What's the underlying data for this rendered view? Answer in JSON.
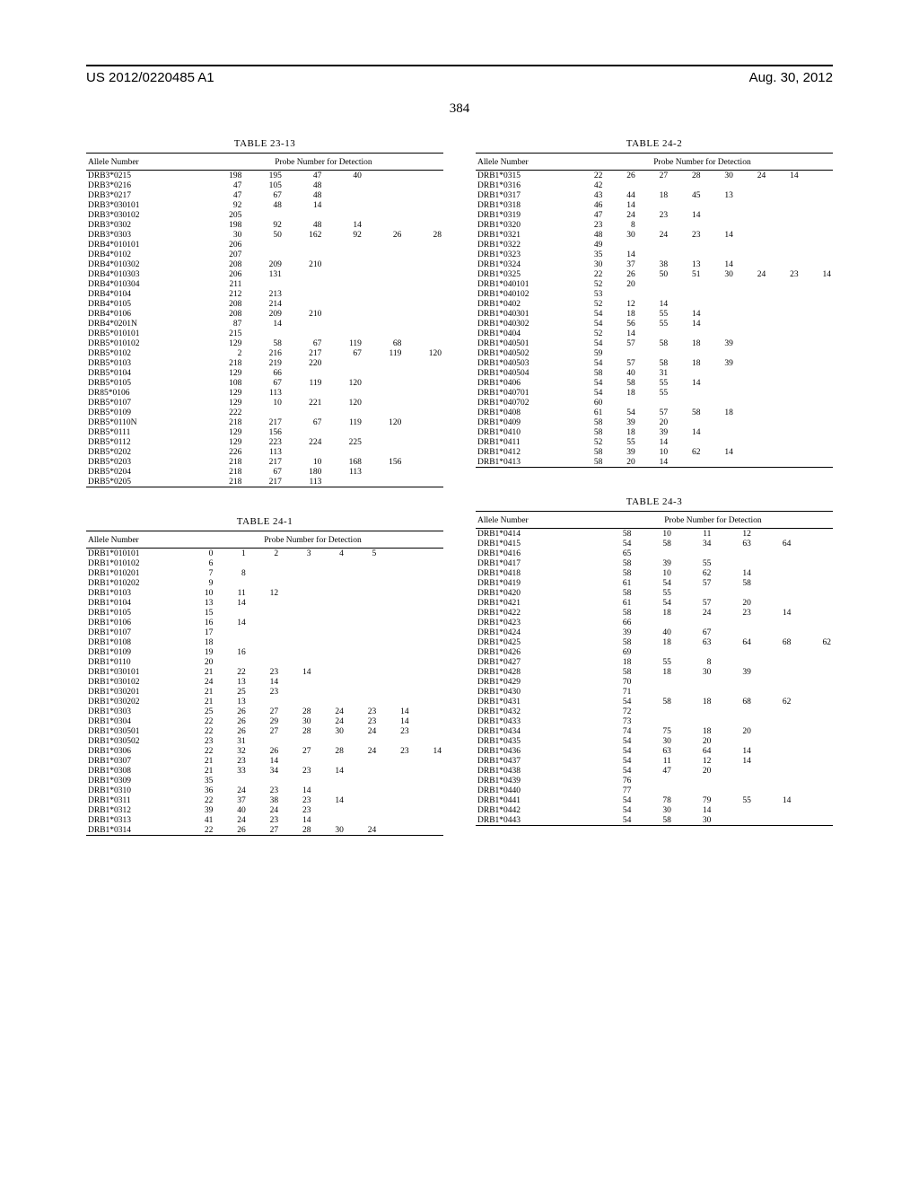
{
  "header": {
    "left": "US 2012/0220485 A1",
    "right": "Aug. 30, 2012",
    "page_number": "384"
  },
  "tables": {
    "t23_13": {
      "title": "TABLE 23-13",
      "heads": {
        "allele": "Allele Number",
        "probe": "Probe Number for Detection"
      },
      "num_cols": 6,
      "rows": [
        [
          "DRB3*0215",
          "198",
          "195",
          "47",
          "40",
          "",
          ""
        ],
        [
          "DRB3*0216",
          "47",
          "105",
          "48",
          "",
          "",
          ""
        ],
        [
          "DRB3*0217",
          "47",
          "67",
          "48",
          "",
          "",
          ""
        ],
        [
          "DRB3*030101",
          "92",
          "48",
          "14",
          "",
          "",
          ""
        ],
        [
          "DRB3*030102",
          "205",
          "",
          "",
          "",
          "",
          ""
        ],
        [
          "DRB3*0302",
          "198",
          "92",
          "48",
          "14",
          "",
          ""
        ],
        [
          "DRB3*0303",
          "30",
          "50",
          "162",
          "92",
          "26",
          "28"
        ],
        [
          "DRB4*010101",
          "206",
          "",
          "",
          "",
          "",
          ""
        ],
        [
          "DRB4*0102",
          "207",
          "",
          "",
          "",
          "",
          ""
        ],
        [
          "DRB4*010302",
          "208",
          "209",
          "210",
          "",
          "",
          ""
        ],
        [
          "DRB4*010303",
          "206",
          "131",
          "",
          "",
          "",
          ""
        ],
        [
          "DRB4*010304",
          "211",
          "",
          "",
          "",
          "",
          ""
        ],
        [
          "DRB4*0104",
          "212",
          "213",
          "",
          "",
          "",
          ""
        ],
        [
          "DRB4*0105",
          "208",
          "214",
          "",
          "",
          "",
          ""
        ],
        [
          "DRB4*0106",
          "208",
          "209",
          "210",
          "",
          "",
          ""
        ],
        [
          "DRB4*0201N",
          "87",
          "14",
          "",
          "",
          "",
          ""
        ],
        [
          "DRB5*010101",
          "215",
          "",
          "",
          "",
          "",
          ""
        ],
        [
          "DRB5*010102",
          "129",
          "58",
          "67",
          "119",
          "68",
          ""
        ],
        [
          "DRB5*0102",
          "2",
          "216",
          "217",
          "67",
          "119",
          "120"
        ],
        [
          "DRB5*0103",
          "218",
          "219",
          "220",
          "",
          "",
          ""
        ],
        [
          "DRB5*0104",
          "129",
          "66",
          "",
          "",
          "",
          ""
        ],
        [
          "DRB5*0105",
          "108",
          "67",
          "119",
          "120",
          "",
          ""
        ],
        [
          "DR85*0106",
          "129",
          "113",
          "",
          "",
          "",
          ""
        ],
        [
          "DRB5*0107",
          "129",
          "10",
          "221",
          "120",
          "",
          ""
        ],
        [
          "DRB5*0109",
          "222",
          "",
          "",
          "",
          "",
          ""
        ],
        [
          "DRB5*0110N",
          "218",
          "217",
          "67",
          "119",
          "120",
          ""
        ],
        [
          "DRB5*0111",
          "129",
          "156",
          "",
          "",
          "",
          ""
        ],
        [
          "DRB5*0112",
          "129",
          "223",
          "224",
          "225",
          "",
          ""
        ],
        [
          "DRB5*0202",
          "226",
          "113",
          "",
          "",
          "",
          ""
        ],
        [
          "DRB5*0203",
          "218",
          "217",
          "10",
          "168",
          "156",
          ""
        ],
        [
          "DRB5*0204",
          "218",
          "67",
          "180",
          "113",
          "",
          ""
        ],
        [
          "DRB5*0205",
          "218",
          "217",
          "113",
          "",
          "",
          ""
        ]
      ]
    },
    "t24_1": {
      "title": "TABLE 24-1",
      "heads": {
        "allele": "Allele Number",
        "probe": "Probe Number for Detection"
      },
      "num_cols": 8,
      "rows": [
        [
          "DRB1*010101",
          "0",
          "1",
          "2",
          "3",
          "4",
          "5",
          "",
          ""
        ],
        [
          "DRB1*010102",
          "6",
          "",
          "",
          "",
          "",
          "",
          "",
          ""
        ],
        [
          "DRB1*010201",
          "7",
          "8",
          "",
          "",
          "",
          "",
          "",
          ""
        ],
        [
          "DRB1*010202",
          "9",
          "",
          "",
          "",
          "",
          "",
          "",
          ""
        ],
        [
          "DRB1*0103",
          "10",
          "11",
          "12",
          "",
          "",
          "",
          "",
          ""
        ],
        [
          "DRB1*0104",
          "13",
          "14",
          "",
          "",
          "",
          "",
          "",
          ""
        ],
        [
          "DRB1*0105",
          "15",
          "",
          "",
          "",
          "",
          "",
          "",
          ""
        ],
        [
          "DRB1*0106",
          "16",
          "14",
          "",
          "",
          "",
          "",
          "",
          ""
        ],
        [
          "DRB1*0107",
          "17",
          "",
          "",
          "",
          "",
          "",
          "",
          ""
        ],
        [
          "DRB1*0108",
          "18",
          "",
          "",
          "",
          "",
          "",
          "",
          ""
        ],
        [
          "DRB1*0109",
          "19",
          "16",
          "",
          "",
          "",
          "",
          "",
          ""
        ],
        [
          "DRB1*0110",
          "20",
          "",
          "",
          "",
          "",
          "",
          "",
          ""
        ],
        [
          "DRB1*030101",
          "21",
          "22",
          "23",
          "14",
          "",
          "",
          "",
          ""
        ],
        [
          "DRB1*030102",
          "24",
          "13",
          "14",
          "",
          "",
          "",
          "",
          ""
        ],
        [
          "DRB1*030201",
          "21",
          "25",
          "23",
          "",
          "",
          "",
          "",
          ""
        ],
        [
          "DRB1*030202",
          "21",
          "13",
          "",
          "",
          "",
          "",
          "",
          ""
        ],
        [
          "DRB1*0303",
          "25",
          "26",
          "27",
          "28",
          "24",
          "23",
          "14",
          ""
        ],
        [
          "DRB1*0304",
          "22",
          "26",
          "29",
          "30",
          "24",
          "23",
          "14",
          ""
        ],
        [
          "DRB1*030501",
          "22",
          "26",
          "27",
          "28",
          "30",
          "24",
          "23",
          ""
        ],
        [
          "DRB1*030502",
          "23",
          "31",
          "",
          "",
          "",
          "",
          "",
          ""
        ],
        [
          "DRB1*0306",
          "22",
          "32",
          "26",
          "27",
          "28",
          "24",
          "23",
          "14"
        ],
        [
          "DRB1*0307",
          "21",
          "23",
          "14",
          "",
          "",
          "",
          "",
          ""
        ],
        [
          "DRB1*0308",
          "21",
          "33",
          "34",
          "23",
          "14",
          "",
          "",
          ""
        ],
        [
          "DRB1*0309",
          "35",
          "",
          "",
          "",
          "",
          "",
          "",
          ""
        ],
        [
          "DRB1*0310",
          "36",
          "24",
          "23",
          "14",
          "",
          "",
          "",
          ""
        ],
        [
          "DRB1*0311",
          "22",
          "37",
          "38",
          "23",
          "14",
          "",
          "",
          ""
        ],
        [
          "DRB1*0312",
          "39",
          "40",
          "24",
          "23",
          "",
          "",
          "",
          ""
        ],
        [
          "DRB1*0313",
          "41",
          "24",
          "23",
          "14",
          "",
          "",
          "",
          ""
        ],
        [
          "DRB1*0314",
          "22",
          "26",
          "27",
          "28",
          "30",
          "24",
          "",
          ""
        ]
      ]
    },
    "t24_2": {
      "title": "TABLE 24-2",
      "heads": {
        "allele": "Allele Number",
        "probe": "Probe Number for Detection"
      },
      "num_cols": 8,
      "rows": [
        [
          "DRB1*0315",
          "22",
          "26",
          "27",
          "28",
          "30",
          "24",
          "14",
          ""
        ],
        [
          "DRB1*0316",
          "42",
          "",
          "",
          "",
          "",
          "",
          "",
          ""
        ],
        [
          "DRB1*0317",
          "43",
          "44",
          "18",
          "45",
          "13",
          "",
          "",
          ""
        ],
        [
          "DRB1*0318",
          "46",
          "14",
          "",
          "",
          "",
          "",
          "",
          ""
        ],
        [
          "DRB1*0319",
          "47",
          "24",
          "23",
          "14",
          "",
          "",
          "",
          ""
        ],
        [
          "DRB1*0320",
          "23",
          "8",
          "",
          "",
          "",
          "",
          "",
          ""
        ],
        [
          "DRB1*0321",
          "48",
          "30",
          "24",
          "23",
          "14",
          "",
          "",
          ""
        ],
        [
          "DRB1*0322",
          "49",
          "",
          "",
          "",
          "",
          "",
          "",
          ""
        ],
        [
          "DRB1*0323",
          "35",
          "14",
          "",
          "",
          "",
          "",
          "",
          ""
        ],
        [
          "DRB1*0324",
          "30",
          "37",
          "38",
          "13",
          "14",
          "",
          "",
          ""
        ],
        [
          "DRB1*0325",
          "22",
          "26",
          "50",
          "51",
          "30",
          "24",
          "23",
          "14"
        ],
        [
          "DRB1*040101",
          "52",
          "20",
          "",
          "",
          "",
          "",
          "",
          ""
        ],
        [
          "DRB1*040102",
          "53",
          "",
          "",
          "",
          "",
          "",
          "",
          ""
        ],
        [
          "DRB1*0402",
          "52",
          "12",
          "14",
          "",
          "",
          "",
          "",
          ""
        ],
        [
          "DRB1*040301",
          "54",
          "18",
          "55",
          "14",
          "",
          "",
          "",
          ""
        ],
        [
          "DRB1*040302",
          "54",
          "56",
          "55",
          "14",
          "",
          "",
          "",
          ""
        ],
        [
          "DRB1*0404",
          "52",
          "14",
          "",
          "",
          "",
          "",
          "",
          ""
        ],
        [
          "DRB1*040501",
          "54",
          "57",
          "58",
          "18",
          "39",
          "",
          "",
          ""
        ],
        [
          "DRB1*040502",
          "59",
          "",
          "",
          "",
          "",
          "",
          "",
          ""
        ],
        [
          "DRB1*040503",
          "54",
          "57",
          "58",
          "18",
          "39",
          "",
          "",
          ""
        ],
        [
          "DRB1*040504",
          "58",
          "40",
          "31",
          "",
          "",
          "",
          "",
          ""
        ],
        [
          "DRB1*0406",
          "54",
          "58",
          "55",
          "14",
          "",
          "",
          "",
          ""
        ],
        [
          "DRB1*040701",
          "54",
          "18",
          "55",
          "",
          "",
          "",
          "",
          ""
        ],
        [
          "DRB1*040702",
          "60",
          "",
          "",
          "",
          "",
          "",
          "",
          ""
        ],
        [
          "DRB1*0408",
          "61",
          "54",
          "57",
          "58",
          "18",
          "",
          "",
          ""
        ],
        [
          "DRB1*0409",
          "58",
          "39",
          "20",
          "",
          "",
          "",
          "",
          ""
        ],
        [
          "DRB1*0410",
          "58",
          "18",
          "39",
          "14",
          "",
          "",
          "",
          ""
        ],
        [
          "DRB1*0411",
          "52",
          "55",
          "14",
          "",
          "",
          "",
          "",
          ""
        ],
        [
          "DRB1*0412",
          "58",
          "39",
          "10",
          "62",
          "14",
          "",
          "",
          ""
        ],
        [
          "DRB1*0413",
          "58",
          "20",
          "14",
          "",
          "",
          "",
          "",
          ""
        ]
      ]
    },
    "t24_3": {
      "title": "TABLE 24-3",
      "heads": {
        "allele": "Allele Number",
        "probe": "Probe Number for Detection"
      },
      "num_cols": 6,
      "rows": [
        [
          "DRB1*0414",
          "58",
          "10",
          "11",
          "12",
          "",
          ""
        ],
        [
          "DRB1*0415",
          "54",
          "58",
          "34",
          "63",
          "64",
          ""
        ],
        [
          "DRB1*0416",
          "65",
          "",
          "",
          "",
          "",
          ""
        ],
        [
          "DRB1*0417",
          "58",
          "39",
          "55",
          "",
          "",
          ""
        ],
        [
          "DRB1*0418",
          "58",
          "10",
          "62",
          "14",
          "",
          ""
        ],
        [
          "DRB1*0419",
          "61",
          "54",
          "57",
          "58",
          "",
          ""
        ],
        [
          "DRB1*0420",
          "58",
          "55",
          "",
          "",
          "",
          ""
        ],
        [
          "DRB1*0421",
          "61",
          "54",
          "57",
          "20",
          "",
          ""
        ],
        [
          "DRB1*0422",
          "58",
          "18",
          "24",
          "23",
          "14",
          ""
        ],
        [
          "DRB1*0423",
          "66",
          "",
          "",
          "",
          "",
          ""
        ],
        [
          "DRB1*0424",
          "39",
          "40",
          "67",
          "",
          "",
          ""
        ],
        [
          "DRB1*0425",
          "58",
          "18",
          "63",
          "64",
          "68",
          "62"
        ],
        [
          "DRB1*0426",
          "69",
          "",
          "",
          "",
          "",
          ""
        ],
        [
          "DRB1*0427",
          "18",
          "55",
          "8",
          "",
          "",
          ""
        ],
        [
          "DRB1*0428",
          "58",
          "18",
          "30",
          "39",
          "",
          ""
        ],
        [
          "DRB1*0429",
          "70",
          "",
          "",
          "",
          "",
          ""
        ],
        [
          "DRB1*0430",
          "71",
          "",
          "",
          "",
          "",
          ""
        ],
        [
          "DRB1*0431",
          "54",
          "58",
          "18",
          "68",
          "62",
          ""
        ],
        [
          "DRB1*0432",
          "72",
          "",
          "",
          "",
          "",
          ""
        ],
        [
          "DRB1*0433",
          "73",
          "",
          "",
          "",
          "",
          ""
        ],
        [
          "DRB1*0434",
          "74",
          "75",
          "18",
          "20",
          "",
          ""
        ],
        [
          "DRB1*0435",
          "54",
          "30",
          "20",
          "",
          "",
          ""
        ],
        [
          "DRB1*0436",
          "54",
          "63",
          "64",
          "14",
          "",
          ""
        ],
        [
          "DRB1*0437",
          "54",
          "11",
          "12",
          "14",
          "",
          ""
        ],
        [
          "DRB1*0438",
          "54",
          "47",
          "20",
          "",
          "",
          ""
        ],
        [
          "DRB1*0439",
          "76",
          "",
          "",
          "",
          "",
          ""
        ],
        [
          "DRB1*0440",
          "77",
          "",
          "",
          "",
          "",
          ""
        ],
        [
          "DRB1*0441",
          "54",
          "78",
          "79",
          "55",
          "14",
          ""
        ],
        [
          "DRB1*0442",
          "54",
          "30",
          "14",
          "",
          "",
          ""
        ],
        [
          "DRB1*0443",
          "54",
          "58",
          "30",
          "",
          "",
          ""
        ]
      ]
    }
  }
}
